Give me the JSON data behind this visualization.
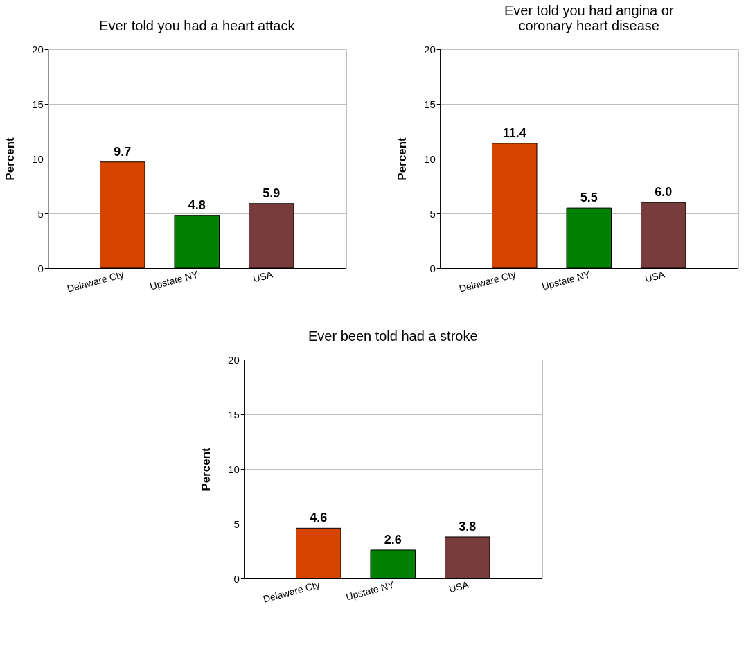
{
  "chart_data": [
    {
      "type": "bar",
      "title": "Ever told you had a heart attack",
      "ylabel": "Percent",
      "categories": [
        "Delaware Cty",
        "Upstate NY",
        "USA"
      ],
      "values": [
        9.7,
        4.8,
        5.9
      ],
      "colors": [
        "#d54500",
        "#008000",
        "#783c3c"
      ],
      "value_labels": [
        "9.7",
        "4.8",
        "5.9"
      ],
      "ylim": [
        0,
        20
      ],
      "yticks": [
        0,
        5,
        10,
        15,
        20
      ],
      "grid": "y",
      "legend": false
    },
    {
      "type": "bar",
      "title": "Ever told you had angina or\ncoronary heart disease",
      "ylabel": "Percent",
      "categories": [
        "Delaware Cty",
        "Upstate NY",
        "USA"
      ],
      "values": [
        11.4,
        5.5,
        6.0
      ],
      "colors": [
        "#d54500",
        "#008000",
        "#783c3c"
      ],
      "value_labels": [
        "11.4",
        "5.5",
        "6.0"
      ],
      "ylim": [
        0,
        20
      ],
      "yticks": [
        0,
        5,
        10,
        15,
        20
      ],
      "grid": "y",
      "legend": false
    },
    {
      "type": "bar",
      "title": "Ever been told  had a stroke",
      "ylabel": "Percent",
      "categories": [
        "Delaware Cty",
        "Upstate NY",
        "USA"
      ],
      "values": [
        4.6,
        2.6,
        3.8
      ],
      "colors": [
        "#d54500",
        "#008000",
        "#783c3c"
      ],
      "value_labels": [
        "4.6",
        "2.6",
        "3.8"
      ],
      "ylim": [
        0,
        20
      ],
      "yticks": [
        0,
        5,
        10,
        15,
        20
      ],
      "grid": "y",
      "legend": false
    }
  ]
}
